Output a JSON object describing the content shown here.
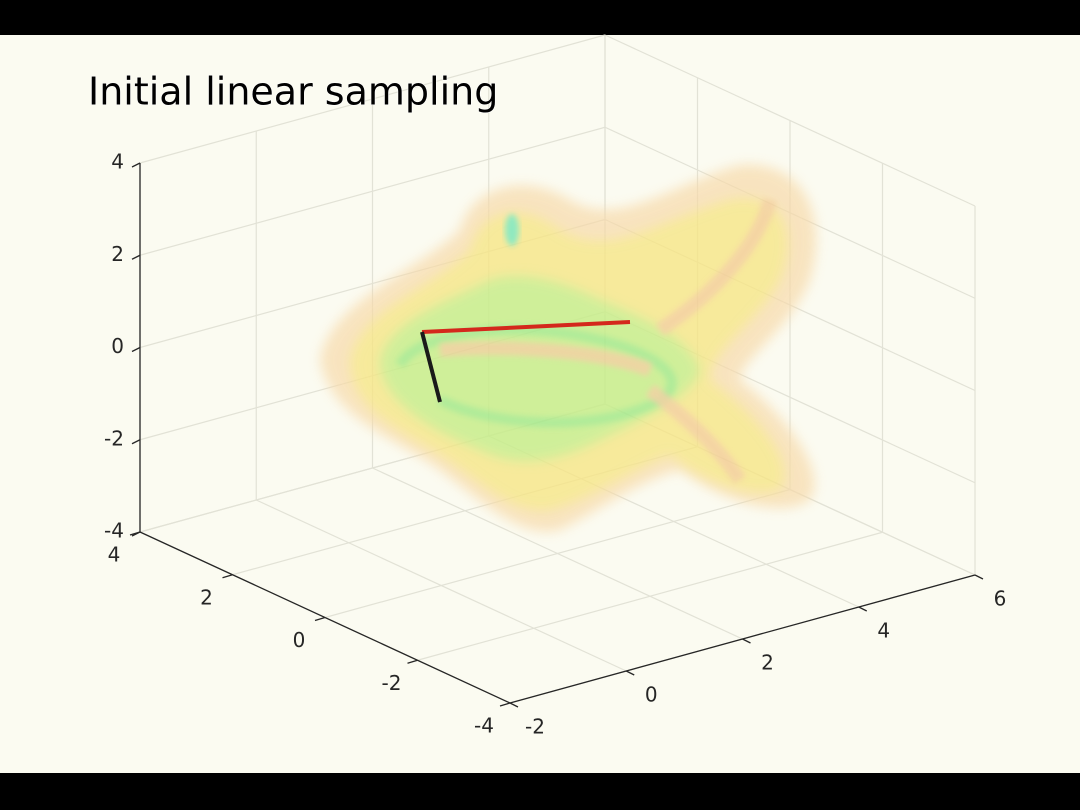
{
  "chart_data": {
    "type": "volume3d",
    "title": "Initial linear sampling",
    "xlim": [
      -2,
      6
    ],
    "xticks": [
      -2,
      0,
      2,
      4,
      6
    ],
    "ylim": [
      -4,
      4
    ],
    "yticks": [
      -4,
      -2,
      0,
      2,
      4
    ],
    "zlim": [
      -4,
      4
    ],
    "zticks": [
      -4,
      -2,
      0,
      2,
      4
    ],
    "grid": true
  }
}
